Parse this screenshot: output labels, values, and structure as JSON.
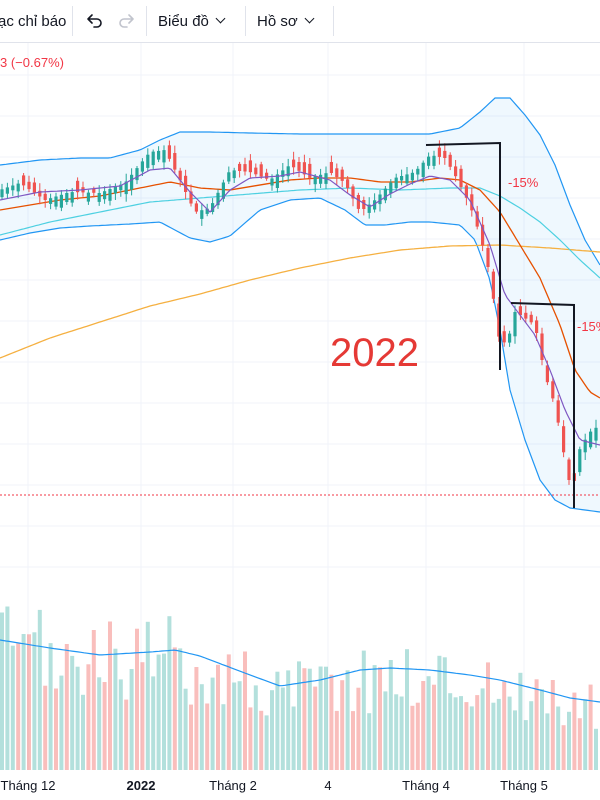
{
  "toolbar": {
    "indicators_label": "ạc chỉ báo",
    "undo_icon": "undo-icon",
    "redo_icon": "redo-icon",
    "chart_menu_label": "Biểu đồ",
    "profile_menu_label": "Hồ sơ"
  },
  "legend": {
    "change_text": "3 (−0.67%)"
  },
  "colors": {
    "up": "#26a69a",
    "down": "#ef5350",
    "bollinger": "#2196f3",
    "ma_fast": "#7e57c2",
    "ma_mid": "#e65100",
    "ma_slow": "#4dd0e1",
    "ma_long": "#f5b041",
    "price_line": "#f23645"
  },
  "chart_data": {
    "type": "candlestick",
    "title": "",
    "annotations": [
      {
        "text": "2022"
      },
      {
        "text": "-15%"
      },
      {
        "text": "-15%"
      }
    ],
    "time_axis": [
      "Tháng 12",
      "2022",
      "Tháng 2",
      "4",
      "Tháng 4",
      "Tháng 5"
    ],
    "series": [
      {
        "name": "bollinger"
      },
      {
        "name": "ma_fast"
      },
      {
        "name": "ma_mid"
      },
      {
        "name": "ma_slow"
      },
      {
        "name": "ma_long"
      },
      {
        "name": "volume"
      }
    ]
  }
}
